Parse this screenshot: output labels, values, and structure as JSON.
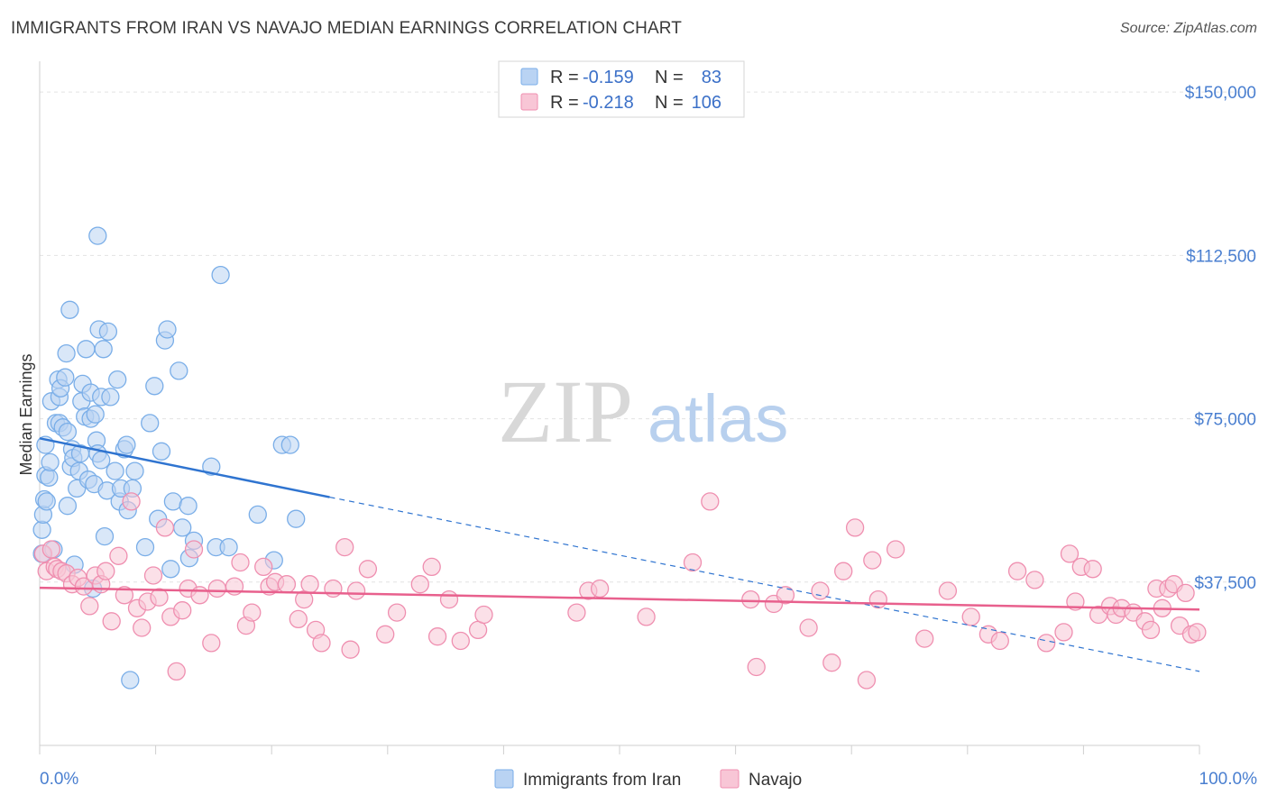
{
  "title": "IMMIGRANTS FROM IRAN VS NAVAJO MEDIAN EARNINGS CORRELATION CHART",
  "source": "Source: ZipAtlas.com",
  "watermark": {
    "zip": "ZIP",
    "atlas": "atlas"
  },
  "legend_top": [
    {
      "r_label": "R = ",
      "r_value": "-0.159",
      "n_label": "N = ",
      "n_value": "83",
      "color": "#7aaee8",
      "fill": "#b9d3f3"
    },
    {
      "r_label": "R = ",
      "r_value": "-0.218",
      "n_label": "N = ",
      "n_value": "106",
      "color": "#ef8fb0",
      "fill": "#f8c6d6"
    }
  ],
  "legend_bottom": [
    {
      "label": "Immigrants from Iran",
      "color": "#7aaee8",
      "fill": "#b9d3f3"
    },
    {
      "label": "Navajo",
      "color": "#ef8fb0",
      "fill": "#f8c6d6"
    }
  ],
  "chart_data": {
    "type": "scatter",
    "title": "IMMIGRANTS FROM IRAN VS NAVAJO MEDIAN EARNINGS CORRELATION CHART",
    "xlabel": "",
    "ylabel": "Median Earnings",
    "xlim": [
      0,
      100
    ],
    "ylim": [
      0,
      155000
    ],
    "x_tick_labels": [
      "0.0%",
      "100.0%"
    ],
    "y_tick_values": [
      37500,
      75000,
      112500,
      150000
    ],
    "y_tick_labels": [
      "$37,500",
      "$75,000",
      "$112,500",
      "$150,000"
    ],
    "grid": true,
    "legend_position": "top-center",
    "series": [
      {
        "name": "Immigrants from Iran",
        "color": "#7aaee8",
        "fill": "#b9d3f3",
        "line_color": "#2f74d0",
        "trend": {
          "x0": 0,
          "y0": 70500,
          "x1": 25,
          "y1": 57000,
          "dash_to_x": 100,
          "dash_to_y": 17000
        },
        "points": [
          [
            0.2,
            44000
          ],
          [
            0.2,
            49500
          ],
          [
            0.3,
            53000
          ],
          [
            0.4,
            56500
          ],
          [
            0.5,
            62000
          ],
          [
            0.5,
            69000
          ],
          [
            0.6,
            56000
          ],
          [
            0.8,
            61500
          ],
          [
            0.9,
            65000
          ],
          [
            1.0,
            79000
          ],
          [
            1.2,
            45000
          ],
          [
            1.4,
            74000
          ],
          [
            1.6,
            84000
          ],
          [
            1.7,
            74000
          ],
          [
            1.7,
            80000
          ],
          [
            1.8,
            82000
          ],
          [
            2.0,
            73000
          ],
          [
            2.2,
            84500
          ],
          [
            2.3,
            90000
          ],
          [
            2.4,
            72000
          ],
          [
            2.4,
            55000
          ],
          [
            2.6,
            100000
          ],
          [
            2.7,
            64000
          ],
          [
            2.8,
            68000
          ],
          [
            2.9,
            66000
          ],
          [
            3.0,
            41500
          ],
          [
            3.2,
            59000
          ],
          [
            3.4,
            63000
          ],
          [
            3.5,
            67000
          ],
          [
            3.6,
            79000
          ],
          [
            3.7,
            83000
          ],
          [
            3.9,
            75500
          ],
          [
            4.0,
            91000
          ],
          [
            4.2,
            61000
          ],
          [
            4.4,
            75000
          ],
          [
            4.4,
            81000
          ],
          [
            4.6,
            36000
          ],
          [
            4.7,
            60000
          ],
          [
            4.8,
            76000
          ],
          [
            4.9,
            70000
          ],
          [
            5.0,
            67000
          ],
          [
            5.0,
            117000
          ],
          [
            5.1,
            95500
          ],
          [
            5.3,
            80000
          ],
          [
            5.3,
            65500
          ],
          [
            5.5,
            91000
          ],
          [
            5.6,
            48000
          ],
          [
            5.8,
            58500
          ],
          [
            5.9,
            95000
          ],
          [
            6.1,
            80000
          ],
          [
            6.5,
            63000
          ],
          [
            6.7,
            84000
          ],
          [
            6.9,
            56000
          ],
          [
            7.0,
            59000
          ],
          [
            7.3,
            68000
          ],
          [
            7.5,
            69000
          ],
          [
            7.6,
            54000
          ],
          [
            7.8,
            15000
          ],
          [
            8.0,
            59000
          ],
          [
            8.2,
            63000
          ],
          [
            9.1,
            45500
          ],
          [
            9.5,
            74000
          ],
          [
            9.9,
            82500
          ],
          [
            10.2,
            52000
          ],
          [
            10.5,
            67500
          ],
          [
            10.8,
            93000
          ],
          [
            11.0,
            95500
          ],
          [
            11.3,
            40500
          ],
          [
            11.5,
            56000
          ],
          [
            12.0,
            86000
          ],
          [
            12.3,
            50000
          ],
          [
            12.8,
            55000
          ],
          [
            12.9,
            43000
          ],
          [
            13.3,
            47000
          ],
          [
            14.8,
            64000
          ],
          [
            15.2,
            45500
          ],
          [
            15.6,
            108000
          ],
          [
            16.3,
            45500
          ],
          [
            18.8,
            53000
          ],
          [
            20.2,
            42500
          ],
          [
            20.9,
            69000
          ],
          [
            21.6,
            69000
          ],
          [
            22.1,
            52000
          ]
        ]
      },
      {
        "name": "Navajo",
        "color": "#ef8fb0",
        "fill": "#f8c6d6",
        "line_color": "#e8608d",
        "trend": {
          "x0": 0,
          "y0": 36200,
          "x1": 100,
          "y1": 31200
        },
        "points": [
          [
            0.3,
            44000
          ],
          [
            0.6,
            40000
          ],
          [
            1.0,
            45000
          ],
          [
            1.3,
            41000
          ],
          [
            1.5,
            40500
          ],
          [
            1.9,
            40000
          ],
          [
            2.3,
            39500
          ],
          [
            2.8,
            37000
          ],
          [
            3.3,
            38500
          ],
          [
            3.8,
            36500
          ],
          [
            4.3,
            32000
          ],
          [
            4.8,
            39000
          ],
          [
            5.3,
            37000
          ],
          [
            5.7,
            40000
          ],
          [
            6.2,
            28500
          ],
          [
            6.8,
            43500
          ],
          [
            7.3,
            34500
          ],
          [
            7.9,
            56000
          ],
          [
            8.4,
            31500
          ],
          [
            8.8,
            27000
          ],
          [
            9.3,
            33000
          ],
          [
            9.8,
            39000
          ],
          [
            10.3,
            34000
          ],
          [
            10.8,
            50000
          ],
          [
            11.3,
            29500
          ],
          [
            11.8,
            17000
          ],
          [
            12.3,
            31000
          ],
          [
            12.8,
            36000
          ],
          [
            13.3,
            45000
          ],
          [
            13.8,
            34500
          ],
          [
            14.8,
            23500
          ],
          [
            15.3,
            36000
          ],
          [
            16.8,
            36500
          ],
          [
            17.3,
            42000
          ],
          [
            17.8,
            27500
          ],
          [
            18.3,
            30500
          ],
          [
            19.3,
            41000
          ],
          [
            19.8,
            36500
          ],
          [
            20.3,
            37500
          ],
          [
            21.3,
            37000
          ],
          [
            22.3,
            29000
          ],
          [
            22.8,
            33500
          ],
          [
            23.3,
            37000
          ],
          [
            23.8,
            26500
          ],
          [
            24.3,
            23500
          ],
          [
            25.3,
            36000
          ],
          [
            26.3,
            45500
          ],
          [
            26.8,
            22000
          ],
          [
            27.3,
            35500
          ],
          [
            28.3,
            40500
          ],
          [
            29.8,
            25500
          ],
          [
            30.8,
            30500
          ],
          [
            32.8,
            37000
          ],
          [
            33.8,
            41000
          ],
          [
            34.3,
            25000
          ],
          [
            35.3,
            33500
          ],
          [
            36.3,
            24000
          ],
          [
            37.8,
            26500
          ],
          [
            38.3,
            30000
          ],
          [
            46.3,
            30500
          ],
          [
            47.3,
            35500
          ],
          [
            48.3,
            36000
          ],
          [
            52.3,
            29500
          ],
          [
            56.3,
            42000
          ],
          [
            57.8,
            56000
          ],
          [
            61.3,
            33500
          ],
          [
            61.8,
            18000
          ],
          [
            63.3,
            32500
          ],
          [
            64.3,
            34500
          ],
          [
            66.3,
            27000
          ],
          [
            67.3,
            35500
          ],
          [
            68.3,
            19000
          ],
          [
            69.3,
            40000
          ],
          [
            70.3,
            50000
          ],
          [
            71.3,
            15000
          ],
          [
            71.8,
            42500
          ],
          [
            72.3,
            33500
          ],
          [
            73.8,
            45000
          ],
          [
            76.3,
            24500
          ],
          [
            78.3,
            35500
          ],
          [
            80.3,
            29500
          ],
          [
            81.8,
            25500
          ],
          [
            82.8,
            24000
          ],
          [
            84.3,
            40000
          ],
          [
            85.8,
            38000
          ],
          [
            86.8,
            23500
          ],
          [
            88.3,
            26000
          ],
          [
            88.8,
            44000
          ],
          [
            89.3,
            33000
          ],
          [
            89.8,
            41000
          ],
          [
            90.8,
            40500
          ],
          [
            91.3,
            30000
          ],
          [
            92.3,
            32000
          ],
          [
            92.8,
            30000
          ],
          [
            93.3,
            31500
          ],
          [
            94.3,
            30500
          ],
          [
            95.3,
            28500
          ],
          [
            95.8,
            26500
          ],
          [
            96.3,
            36000
          ],
          [
            96.8,
            31500
          ],
          [
            97.3,
            36000
          ],
          [
            97.8,
            37000
          ],
          [
            98.3,
            27500
          ],
          [
            98.8,
            35000
          ],
          [
            99.3,
            25500
          ],
          [
            99.8,
            26000
          ]
        ]
      }
    ]
  }
}
